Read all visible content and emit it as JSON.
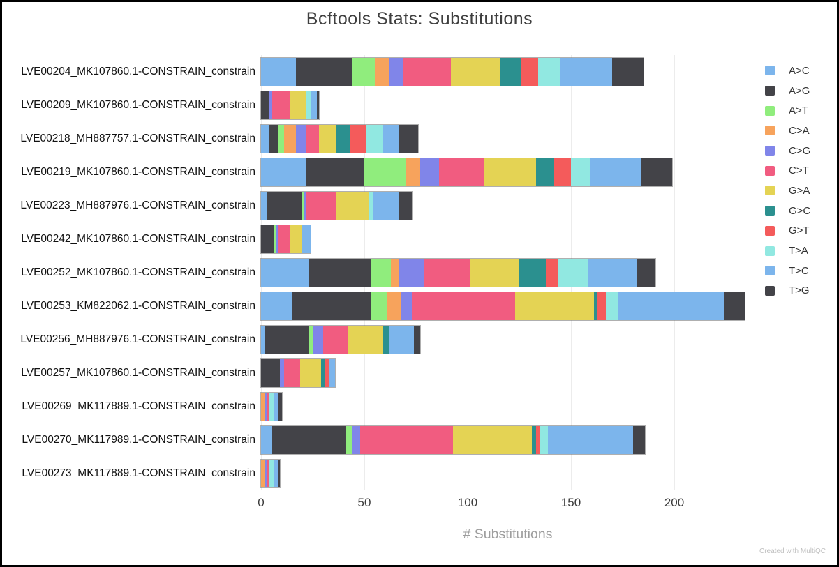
{
  "title": "Bcftools Stats: Substitutions",
  "watermark": "Created with MultiQC",
  "chart_data": {
    "type": "bar",
    "orientation": "horizontal",
    "stacked": true,
    "title": "Bcftools Stats: Substitutions",
    "xlabel": "# Substitutions",
    "ylabel": "",
    "xlim": [
      0,
      236
    ],
    "x_ticks": [
      0,
      50,
      100,
      150,
      200
    ],
    "grid": true,
    "legend_position": "right",
    "categories": [
      "LVE00204_MK107860.1-CONSTRAIN_constrain",
      "LVE00209_MK107860.1-CONSTRAIN_constrain",
      "LVE00218_MH887757.1-CONSTRAIN_constrain",
      "LVE00219_MK107860.1-CONSTRAIN_constrain",
      "LVE00223_MH887976.1-CONSTRAIN_constrain",
      "LVE00242_MK107860.1-CONSTRAIN_constrain",
      "LVE00252_MK107860.1-CONSTRAIN_constrain",
      "LVE00253_KM822062.1-CONSTRAIN_constrain",
      "LVE00256_MH887976.1-CONSTRAIN_constrain",
      "LVE00257_MK107860.1-CONSTRAIN_constrain",
      "LVE00269_MK117889.1-CONSTRAIN_constrain",
      "LVE00270_MK117989.1-CONSTRAIN_constrain",
      "LVE00273_MK117889.1-CONSTRAIN_constrain"
    ],
    "series": [
      {
        "name": "A>C",
        "color": "#7cb5ec",
        "values": [
          17,
          0,
          4,
          22,
          3,
          0,
          23,
          15,
          2,
          0,
          0,
          5,
          0
        ]
      },
      {
        "name": "A>G",
        "color": "#434348",
        "values": [
          27,
          4,
          4,
          28,
          17,
          6,
          30,
          38,
          21,
          9,
          0,
          36,
          0
        ]
      },
      {
        "name": "A>T",
        "color": "#90ed7d",
        "values": [
          11,
          0,
          3,
          20,
          1,
          1,
          10,
          8,
          2,
          0,
          0,
          3,
          0
        ]
      },
      {
        "name": "C>A",
        "color": "#f7a35c",
        "values": [
          7,
          0,
          6,
          7,
          0,
          0,
          4,
          7,
          0,
          0,
          2,
          0,
          2
        ]
      },
      {
        "name": "C>G",
        "color": "#8085e9",
        "values": [
          7,
          1,
          5,
          9,
          1,
          1,
          12,
          5,
          5,
          2,
          1,
          4,
          1
        ]
      },
      {
        "name": "C>T",
        "color": "#f15c80",
        "values": [
          23,
          9,
          6,
          22,
          14,
          6,
          22,
          50,
          12,
          8,
          1,
          45,
          1
        ]
      },
      {
        "name": "G>A",
        "color": "#e4d354",
        "values": [
          24,
          8,
          8,
          25,
          16,
          6,
          24,
          38,
          17,
          10,
          0,
          38,
          0
        ]
      },
      {
        "name": "G>C",
        "color": "#2b908f",
        "values": [
          10,
          0,
          7,
          9,
          0,
          0,
          13,
          2,
          3,
          2,
          0,
          2,
          0
        ]
      },
      {
        "name": "G>T",
        "color": "#f45b5b",
        "values": [
          8,
          0,
          8,
          8,
          0,
          0,
          6,
          4,
          0,
          2,
          0,
          2,
          0
        ]
      },
      {
        "name": "T>A",
        "color": "#91e8e1",
        "values": [
          11,
          2,
          8,
          9,
          2,
          0,
          14,
          6,
          0,
          0,
          2,
          4,
          2
        ]
      },
      {
        "name": "T>C",
        "color": "#7cb5ec",
        "values": [
          25,
          3,
          8,
          25,
          13,
          4,
          24,
          51,
          12,
          3,
          2,
          41,
          2
        ]
      },
      {
        "name": "T>G",
        "color": "#434348",
        "values": [
          15,
          1,
          9,
          15,
          6,
          0,
          9,
          10,
          3,
          0,
          2,
          6,
          1
        ]
      }
    ]
  }
}
